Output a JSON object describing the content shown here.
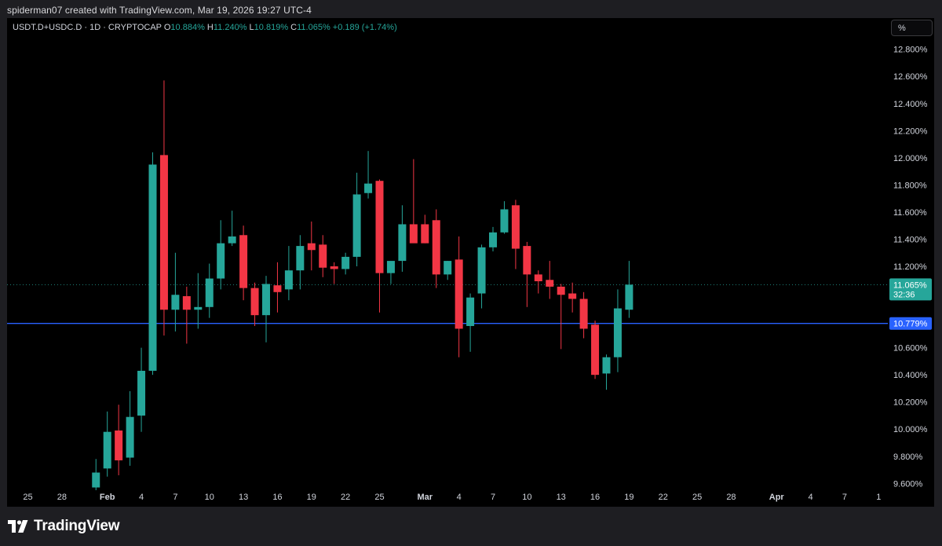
{
  "header": {
    "credit": "spiderman07 created with TradingView.com, Mar 19, 2026 19:27 UTC-4"
  },
  "legend": {
    "symbol": "USDT.D+USDC.D · 1D · CRYPTOCAP",
    "o_label": "O",
    "o_value": "10.884%",
    "h_label": "H",
    "h_value": "11.240%",
    "l_label": "L",
    "l_value": "10.819%",
    "c_label": "C",
    "c_value": "11.065%",
    "change": "+0.189 (+1.74%)"
  },
  "toolbar": {
    "scale_button": "%"
  },
  "footer": {
    "brand": "TradingView"
  },
  "colors": {
    "up": "#26a69a",
    "down": "#f23645",
    "hline": "#2962ff",
    "background": "#000000"
  },
  "chart_data": {
    "type": "candlestick",
    "ylim": [
      9.55,
      12.9
    ],
    "y_ticks": [
      "12.800%",
      "12.600%",
      "12.400%",
      "12.200%",
      "12.000%",
      "11.800%",
      "11.600%",
      "11.400%",
      "11.200%",
      "10.600%",
      "10.400%",
      "10.200%",
      "10.000%",
      "9.800%",
      "9.600%"
    ],
    "y_tick_values": [
      12.8,
      12.6,
      12.4,
      12.2,
      12.0,
      11.8,
      11.6,
      11.4,
      11.2,
      10.6,
      10.4,
      10.2,
      10.0,
      9.8,
      9.6
    ],
    "x_ticks": [
      {
        "label": "25",
        "day": -7
      },
      {
        "label": "28",
        "day": -4
      },
      {
        "label": "Feb",
        "day": 0
      },
      {
        "label": "4",
        "day": 3
      },
      {
        "label": "7",
        "day": 6
      },
      {
        "label": "10",
        "day": 9
      },
      {
        "label": "13",
        "day": 12
      },
      {
        "label": "16",
        "day": 15
      },
      {
        "label": "19",
        "day": 18
      },
      {
        "label": "22",
        "day": 21
      },
      {
        "label": "25",
        "day": 24
      },
      {
        "label": "Mar",
        "day": 28
      },
      {
        "label": "4",
        "day": 31
      },
      {
        "label": "7",
        "day": 34
      },
      {
        "label": "10",
        "day": 37
      },
      {
        "label": "13",
        "day": 40
      },
      {
        "label": "16",
        "day": 43
      },
      {
        "label": "19",
        "day": 46
      },
      {
        "label": "22",
        "day": 49
      },
      {
        "label": "25",
        "day": 52
      },
      {
        "label": "28",
        "day": 55
      },
      {
        "label": "Apr",
        "day": 59
      },
      {
        "label": "4",
        "day": 62
      },
      {
        "label": "7",
        "day": 65
      },
      {
        "label": "1",
        "day": 68
      }
    ],
    "candles": [
      {
        "day": -1,
        "o": 9.57,
        "h": 9.78,
        "l": 9.55,
        "c": 9.68
      },
      {
        "day": 0,
        "o": 9.71,
        "h": 10.13,
        "l": 9.65,
        "c": 9.98
      },
      {
        "day": 1,
        "o": 9.99,
        "h": 10.18,
        "l": 9.66,
        "c": 9.77
      },
      {
        "day": 2,
        "o": 9.79,
        "h": 10.28,
        "l": 9.73,
        "c": 10.09
      },
      {
        "day": 3,
        "o": 10.1,
        "h": 10.6,
        "l": 9.98,
        "c": 10.43
      },
      {
        "day": 4,
        "o": 10.43,
        "h": 12.04,
        "l": 10.4,
        "c": 11.95
      },
      {
        "day": 5,
        "o": 12.02,
        "h": 12.57,
        "l": 10.69,
        "c": 10.88
      },
      {
        "day": 6,
        "o": 10.88,
        "h": 11.3,
        "l": 10.72,
        "c": 10.99
      },
      {
        "day": 7,
        "o": 10.98,
        "h": 11.05,
        "l": 10.63,
        "c": 10.88
      },
      {
        "day": 8,
        "o": 10.88,
        "h": 11.15,
        "l": 10.74,
        "c": 10.9
      },
      {
        "day": 9,
        "o": 10.9,
        "h": 11.22,
        "l": 10.82,
        "c": 11.11
      },
      {
        "day": 10,
        "o": 11.11,
        "h": 11.54,
        "l": 11.03,
        "c": 11.37
      },
      {
        "day": 11,
        "o": 11.37,
        "h": 11.61,
        "l": 11.35,
        "c": 11.42
      },
      {
        "day": 12,
        "o": 11.43,
        "h": 11.5,
        "l": 10.95,
        "c": 11.04
      },
      {
        "day": 13,
        "o": 11.04,
        "h": 11.08,
        "l": 10.76,
        "c": 10.84
      },
      {
        "day": 14,
        "o": 10.84,
        "h": 11.13,
        "l": 10.64,
        "c": 11.07
      },
      {
        "day": 15,
        "o": 11.06,
        "h": 11.23,
        "l": 10.86,
        "c": 11.01
      },
      {
        "day": 16,
        "o": 11.03,
        "h": 11.35,
        "l": 10.95,
        "c": 11.17
      },
      {
        "day": 17,
        "o": 11.17,
        "h": 11.43,
        "l": 11.03,
        "c": 11.35
      },
      {
        "day": 18,
        "o": 11.37,
        "h": 11.53,
        "l": 11.17,
        "c": 11.32
      },
      {
        "day": 19,
        "o": 11.36,
        "h": 11.43,
        "l": 11.12,
        "c": 11.19
      },
      {
        "day": 20,
        "o": 11.2,
        "h": 11.23,
        "l": 11.07,
        "c": 11.18
      },
      {
        "day": 21,
        "o": 11.18,
        "h": 11.3,
        "l": 11.14,
        "c": 11.27
      },
      {
        "day": 22,
        "o": 11.27,
        "h": 11.89,
        "l": 11.2,
        "c": 11.73
      },
      {
        "day": 23,
        "o": 11.74,
        "h": 12.05,
        "l": 11.7,
        "c": 11.81
      },
      {
        "day": 24,
        "o": 11.83,
        "h": 11.84,
        "l": 10.86,
        "c": 11.15
      },
      {
        "day": 25,
        "o": 11.15,
        "h": 11.23,
        "l": 11.07,
        "c": 11.24
      },
      {
        "day": 26,
        "o": 11.24,
        "h": 11.65,
        "l": 11.16,
        "c": 11.51
      },
      {
        "day": 27,
        "o": 11.51,
        "h": 11.99,
        "l": 11.38,
        "c": 11.37
      },
      {
        "day": 28,
        "o": 11.51,
        "h": 11.58,
        "l": 11.37,
        "c": 11.37
      },
      {
        "day": 29,
        "o": 11.54,
        "h": 11.62,
        "l": 11.04,
        "c": 11.14
      },
      {
        "day": 30,
        "o": 11.14,
        "h": 11.24,
        "l": 11.1,
        "c": 11.24
      },
      {
        "day": 31,
        "o": 11.25,
        "h": 11.42,
        "l": 10.53,
        "c": 10.74
      },
      {
        "day": 32,
        "o": 10.76,
        "h": 11.0,
        "l": 10.57,
        "c": 10.97
      },
      {
        "day": 33,
        "o": 11.0,
        "h": 11.36,
        "l": 10.89,
        "c": 11.34
      },
      {
        "day": 34,
        "o": 11.34,
        "h": 11.49,
        "l": 11.31,
        "c": 11.45
      },
      {
        "day": 35,
        "o": 11.45,
        "h": 11.68,
        "l": 11.44,
        "c": 11.62
      },
      {
        "day": 36,
        "o": 11.65,
        "h": 11.69,
        "l": 11.18,
        "c": 11.33
      },
      {
        "day": 37,
        "o": 11.35,
        "h": 11.38,
        "l": 10.9,
        "c": 11.14
      },
      {
        "day": 38,
        "o": 11.14,
        "h": 11.17,
        "l": 11.0,
        "c": 11.09
      },
      {
        "day": 39,
        "o": 11.1,
        "h": 11.24,
        "l": 10.96,
        "c": 11.05
      },
      {
        "day": 40,
        "o": 11.05,
        "h": 11.07,
        "l": 10.59,
        "c": 10.99
      },
      {
        "day": 41,
        "o": 11.0,
        "h": 11.08,
        "l": 10.86,
        "c": 10.96
      },
      {
        "day": 42,
        "o": 10.96,
        "h": 11.01,
        "l": 10.67,
        "c": 10.74
      },
      {
        "day": 43,
        "o": 10.77,
        "h": 10.8,
        "l": 10.37,
        "c": 10.4
      },
      {
        "day": 44,
        "o": 10.41,
        "h": 10.55,
        "l": 10.29,
        "c": 10.53
      },
      {
        "day": 45,
        "o": 10.53,
        "h": 11.03,
        "l": 10.42,
        "c": 10.89
      },
      {
        "day": 46,
        "o": 10.88,
        "h": 11.24,
        "l": 10.82,
        "c": 11.065
      }
    ],
    "last_price": {
      "value": 11.065,
      "label": "11.065%",
      "countdown": "32:36"
    },
    "hline": {
      "value": 10.779,
      "label": "10.779%"
    }
  }
}
